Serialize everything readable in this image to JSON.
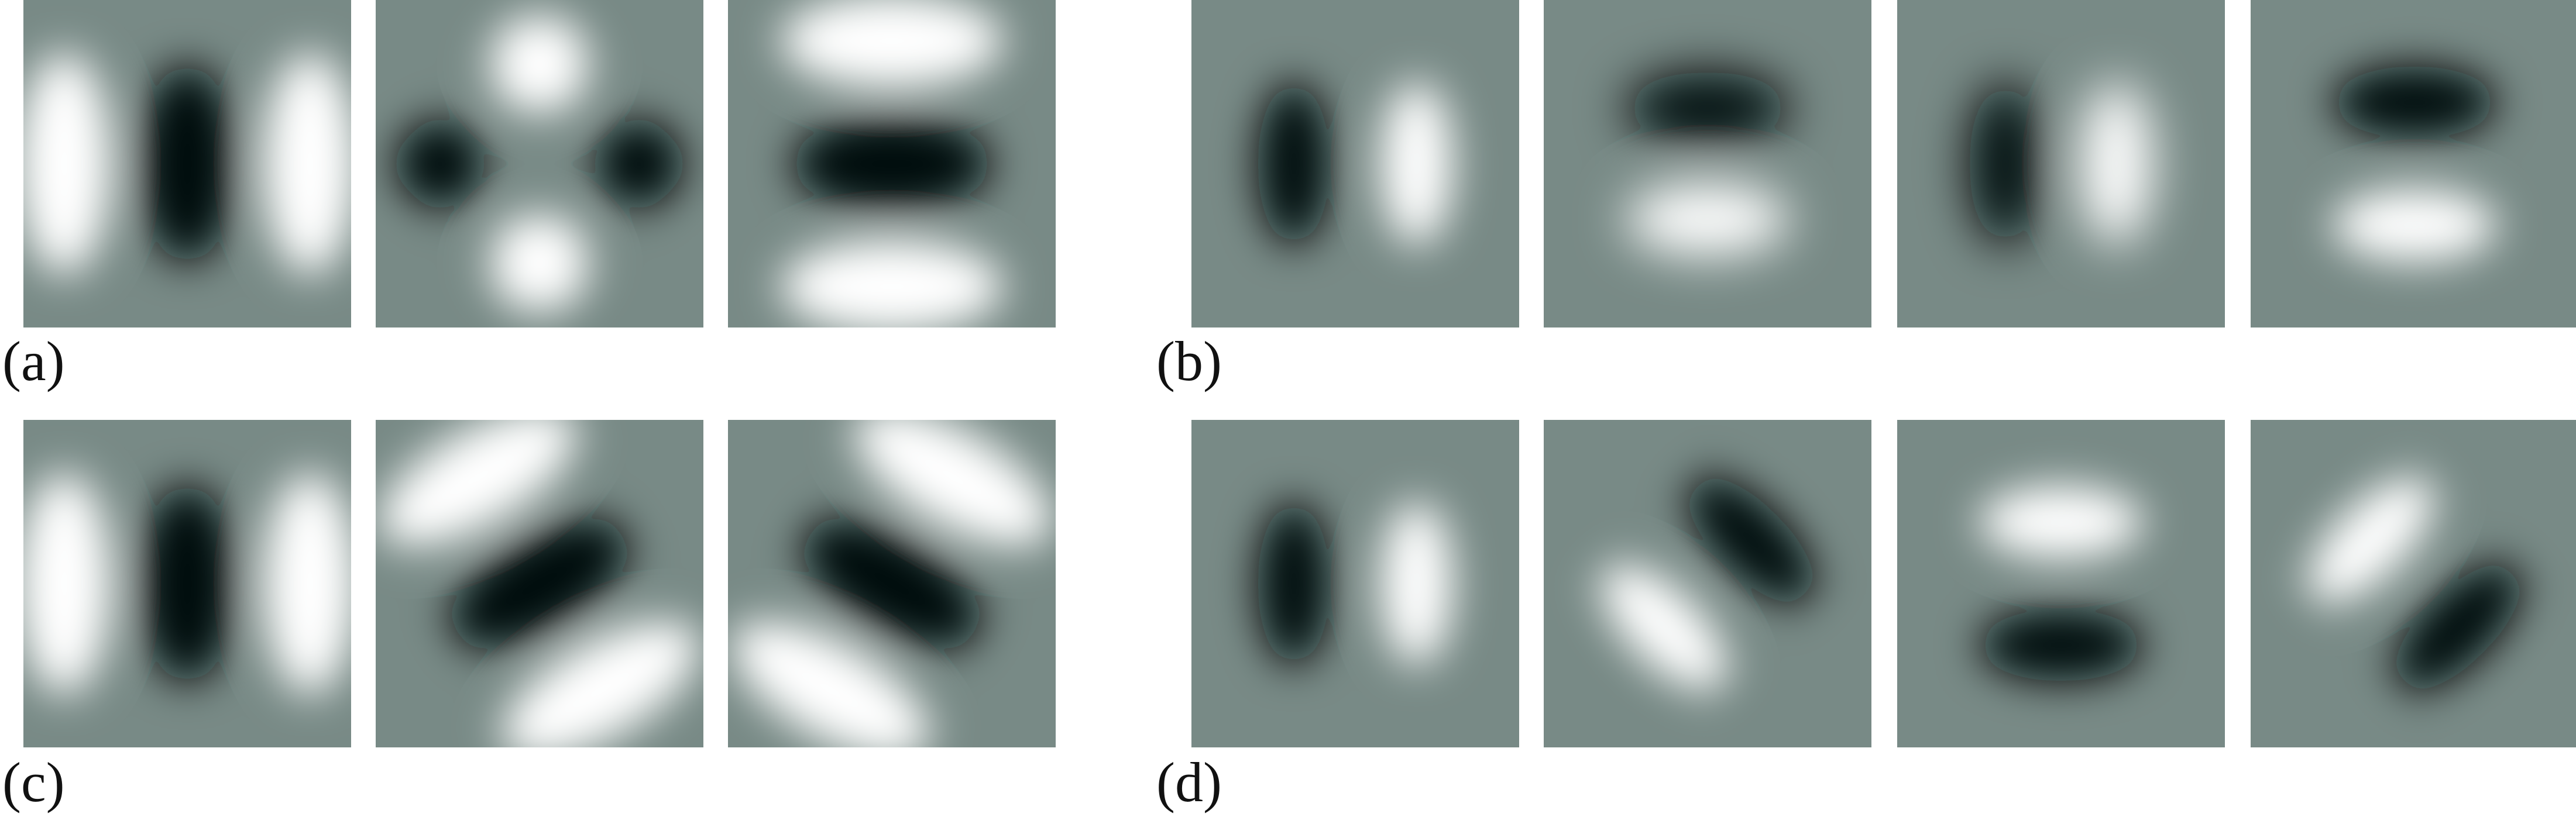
{
  "background_gray": "#788a86",
  "dark": "#050707",
  "light": "#ffffff",
  "panels": [
    {
      "label": "(a)",
      "description_shape": "even",
      "filters": [
        {
          "name": "filter-a-1",
          "kind": "even-single",
          "orientation_deg": 0
        },
        {
          "name": "filter-a-2",
          "kind": "quad",
          "orientation_deg": 45
        },
        {
          "name": "filter-a-3",
          "kind": "even-single",
          "orientation_deg": 90
        }
      ]
    },
    {
      "label": "(b)",
      "description_shape": "odd",
      "filters": [
        {
          "name": "filter-b-1",
          "kind": "odd-pair",
          "orientation_deg": 0
        },
        {
          "name": "filter-b-2",
          "kind": "odd-pair-soft",
          "orientation_deg": 90
        },
        {
          "name": "filter-b-3",
          "kind": "odd-pair-soft",
          "orientation_deg": 0
        },
        {
          "name": "filter-b-4",
          "kind": "odd-pair",
          "orientation_deg": 90
        }
      ]
    },
    {
      "label": "(c)",
      "description_shape": "even",
      "filters": [
        {
          "name": "filter-c-1",
          "kind": "even-single",
          "orientation_deg": 0
        },
        {
          "name": "filter-c-2",
          "kind": "even-single",
          "orientation_deg": 60
        },
        {
          "name": "filter-c-3",
          "kind": "even-single",
          "orientation_deg": 120
        }
      ]
    },
    {
      "label": "(d)",
      "description_shape": "odd",
      "filters": [
        {
          "name": "filter-d-1",
          "kind": "odd-pair",
          "orientation_deg": 0
        },
        {
          "name": "filter-d-2",
          "kind": "odd-pair",
          "orientation_deg": 135
        },
        {
          "name": "filter-d-3",
          "kind": "odd-pair",
          "orientation_deg": 270
        },
        {
          "name": "filter-d-4",
          "kind": "odd-pair",
          "orientation_deg": 225
        }
      ]
    }
  ]
}
